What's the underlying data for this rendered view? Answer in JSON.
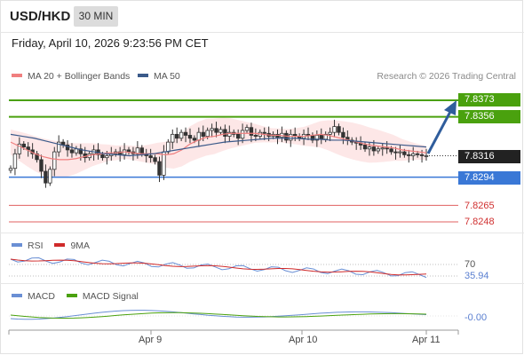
{
  "header": {
    "pair": "USD/HKD",
    "timeframe": "30 MIN",
    "datetime": "Friday, April 10, 2026 9:23:56 PM CET",
    "copyright": "Research © 2026 Trading Central"
  },
  "legend": {
    "ma20": "MA 20 + Bollinger Bands",
    "ma50": "MA 50"
  },
  "rsi_legend": {
    "rsi": "RSI",
    "ma": "9MA"
  },
  "macd_legend": {
    "macd": "MACD",
    "signal": "MACD Signal"
  },
  "colors": {
    "ma20": "#f07f7f",
    "ma50": "#3b5a8a",
    "bollinger_fill": "#fde4e4",
    "resistance": "#4aa10e",
    "support": "#3a78d6",
    "target_line": "#e06060",
    "arrow": "#2f5d9c",
    "current_price_tag": "#222222",
    "rsi": "#6a8fd4",
    "rsi_ma": "#d02a2a",
    "macd": "#6a8fd4",
    "macd_signal": "#4aa10e"
  },
  "chart_data": {
    "type": "candlestick",
    "title": "USD/HKD",
    "interval": "30 MIN",
    "x_ticks": [
      "Apr 9",
      "Apr 10",
      "Apr 11"
    ],
    "ylim": [
      7.824,
      7.838
    ],
    "levels": {
      "resistance_1": "7.8373",
      "resistance_2": "7.8356",
      "current": "7.8316",
      "support_1": "7.8294",
      "support_2": "7.8265",
      "support_3": "7.8248"
    },
    "close_series": [
      7.8303,
      7.8318,
      7.8328,
      7.8325,
      7.8322,
      7.8318,
      7.8312,
      7.83,
      7.8288,
      7.8302,
      7.832,
      7.833,
      7.8327,
      7.8322,
      7.8319,
      7.8323,
      7.8318,
      7.8314,
      7.8318,
      7.8322,
      7.8317,
      7.8314,
      7.8316,
      7.8318,
      7.832,
      7.8317,
      7.8322,
      7.832,
      7.8318,
      7.8324,
      7.8318,
      7.8316,
      7.8314,
      7.831,
      7.8296,
      7.832,
      7.833,
      7.8338,
      7.8334,
      7.834,
      7.8337,
      7.8334,
      7.8332,
      7.834,
      7.8336,
      7.8342,
      7.8344,
      7.834,
      7.8343,
      7.8336,
      7.834,
      7.8338,
      7.8334,
      7.8342,
      7.8345,
      7.8337,
      7.8336,
      7.834,
      7.8339,
      7.8336,
      7.8338,
      7.8335,
      7.8339,
      7.8332,
      7.8338,
      7.8336,
      7.8334,
      7.8338,
      7.8337,
      7.8332,
      7.8337,
      7.8333,
      7.8338,
      7.834,
      7.8346,
      7.834,
      7.8335,
      7.8332,
      7.833,
      7.8329,
      7.8327,
      7.8323,
      7.8325,
      7.8321,
      7.8323,
      7.8324,
      7.8323,
      7.832,
      7.8319,
      7.832,
      7.8317,
      7.8316,
      7.8318,
      7.8317,
      7.8316,
      7.8316
    ],
    "series": [
      {
        "name": "MA 20 + Bollinger Bands",
        "values": [
          7.833,
          7.8326,
          7.8322,
          7.8318,
          7.8315,
          7.8313,
          7.8312,
          7.8312,
          7.8313,
          7.8315,
          7.8317,
          7.8318,
          7.8319,
          7.8319,
          7.832,
          7.8319,
          7.8318,
          7.8318,
          7.8318,
          7.8317,
          7.8318,
          7.8322,
          7.8328,
          7.8332,
          7.8335,
          7.8336,
          7.8338,
          7.8339,
          7.8339,
          7.8339,
          7.8339,
          7.8338,
          7.8337,
          7.8337,
          7.8336,
          7.8336,
          7.8336,
          7.8337,
          7.8338,
          7.8337,
          7.8335,
          7.8333,
          7.8331,
          7.8329,
          7.8327,
          7.8326,
          7.8325,
          7.8324,
          7.8322,
          7.8321,
          7.832,
          7.8319
        ]
      },
      {
        "name": "MA 50",
        "values": [
          7.8338,
          7.8336,
          7.8334,
          7.8331,
          7.8328,
          7.8325,
          7.8322,
          7.832,
          7.8318,
          7.8317,
          7.8316,
          7.8317,
          7.8318,
          7.832,
          7.8322,
          7.8324,
          7.8326,
          7.8328,
          7.833,
          7.8331,
          7.8332,
          7.8333,
          7.8334,
          7.8334,
          7.8334,
          7.8333,
          7.8333,
          7.8332,
          7.8332,
          7.8331,
          7.833,
          7.8329,
          7.8328,
          7.8327,
          7.8326,
          7.8325
        ]
      }
    ],
    "rsi": {
      "levels": [
        "70"
      ],
      "last": "35.94"
    },
    "macd": {
      "last": "-0.00"
    }
  }
}
